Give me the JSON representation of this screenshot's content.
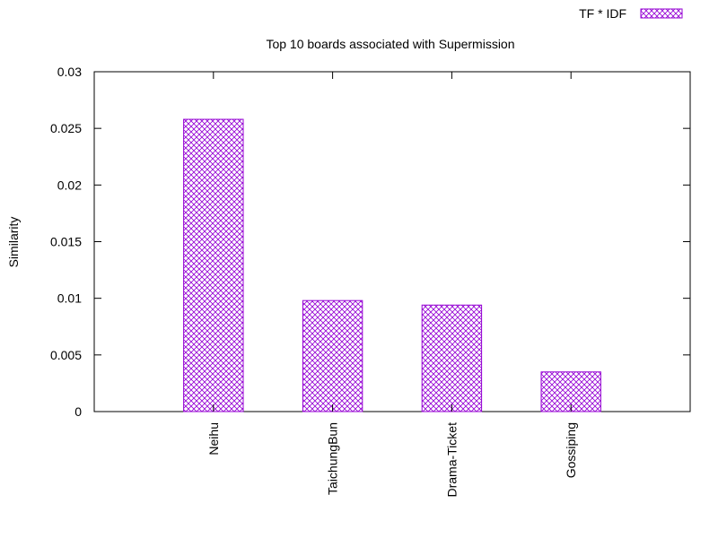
{
  "chart_data": {
    "type": "bar",
    "title": "Top 10 boards associated with Supermission",
    "xlabel": "",
    "ylabel": "Similarity",
    "ylim": [
      0,
      0.03
    ],
    "yticks": [
      "0",
      "0.005",
      "0.01",
      "0.015",
      "0.02",
      "0.025",
      "0.03"
    ],
    "categories": [
      "Neihu",
      "TaichungBun",
      "Drama-Ticket",
      "Gossiping"
    ],
    "series": [
      {
        "name": "TF * IDF",
        "values": [
          0.0258,
          0.0098,
          0.0094,
          0.0035
        ],
        "color": "#9400d3"
      }
    ],
    "legend": "top-right",
    "grid": false
  }
}
